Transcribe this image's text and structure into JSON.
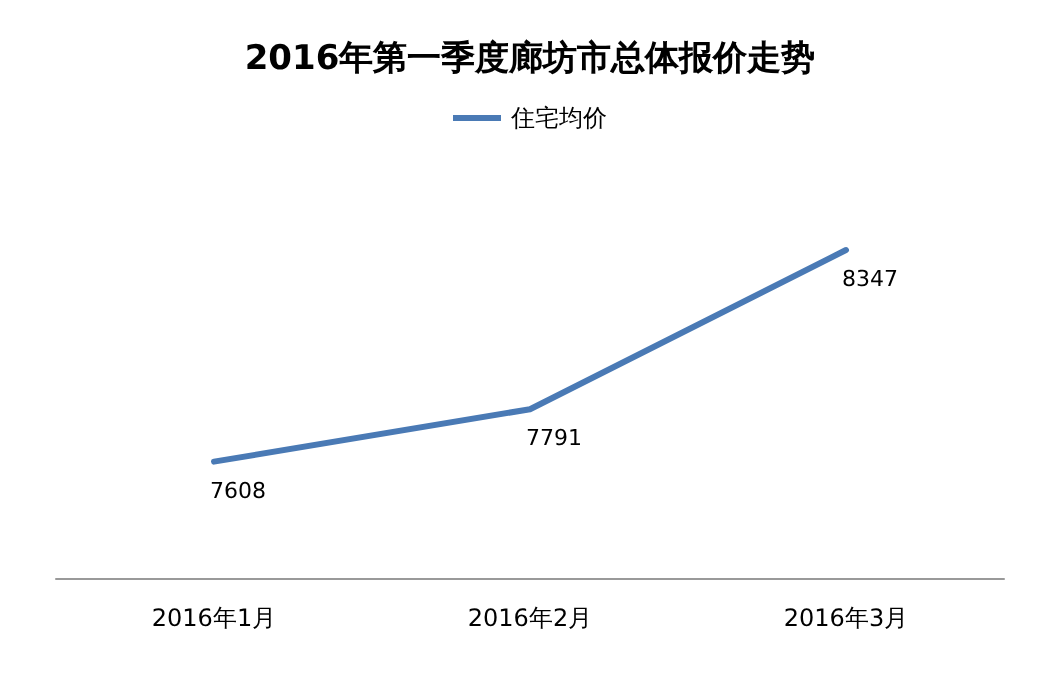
{
  "chart_data": {
    "type": "line",
    "title": "2016年第一季度廊坊市总体报价走势",
    "categories": [
      "2016年1月",
      "2016年2月",
      "2016年3月"
    ],
    "series": [
      {
        "name": "住宅均价",
        "color": "#4a7ab5",
        "values": [
          7608,
          7791,
          8347
        ]
      }
    ],
    "data_labels": true,
    "legend": "top",
    "marker": "none",
    "grid": false,
    "tick_labels": "x",
    "line_style": "solid"
  }
}
